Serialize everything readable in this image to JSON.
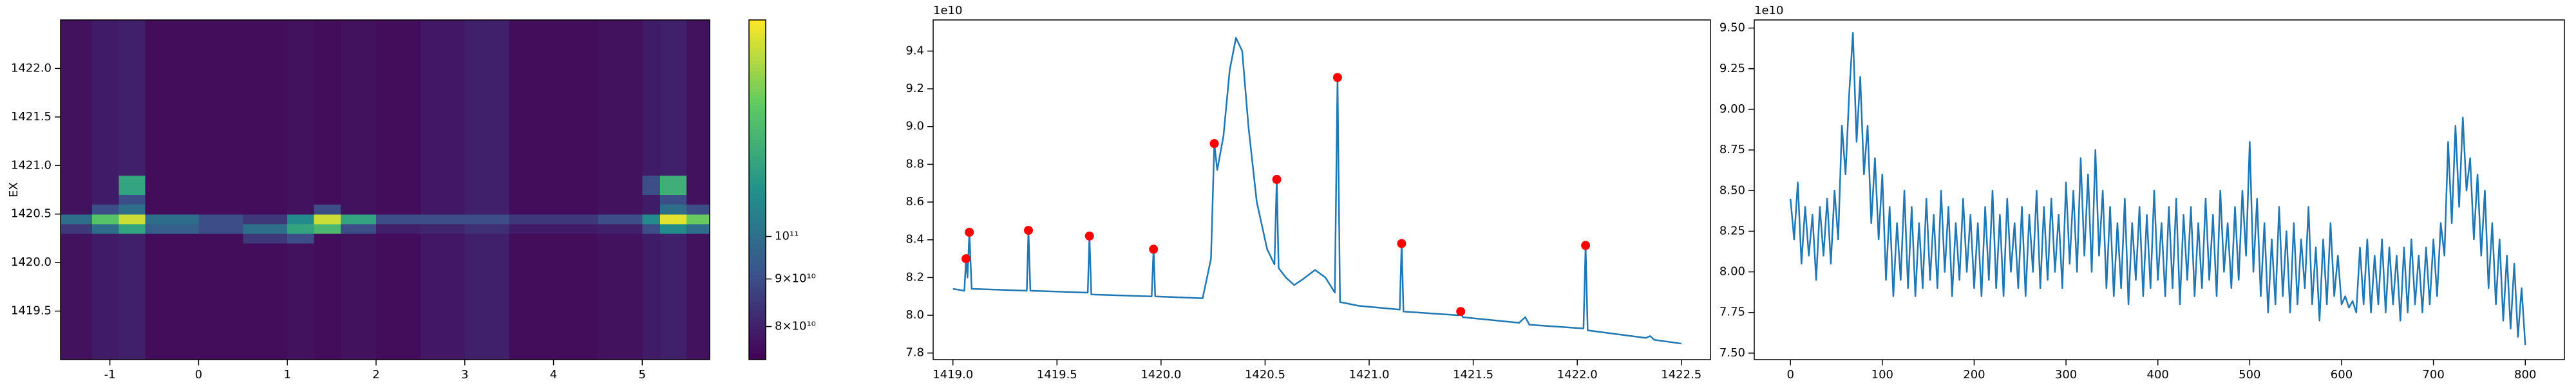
{
  "chart_data": [
    {
      "type": "heatmap",
      "ylabel": "EX",
      "x_edges": [
        -1.556,
        -1.2,
        -0.9,
        -0.6,
        0,
        0.5,
        1.0,
        1.3,
        1.6,
        2.0,
        2.5,
        3.0,
        3.5,
        4.0,
        4.5,
        5.0,
        5.2,
        5.5,
        5.76
      ],
      "y_edges": [
        1419.0,
        1419.5,
        1420.0,
        1420.2,
        1420.3,
        1420.4,
        1420.5,
        1420.6,
        1420.7,
        1420.9,
        1421.0,
        1421.5,
        1422.0,
        1422.5
      ],
      "z": [
        [
          77000000000.0,
          79000000000.0,
          80000000000.0,
          76000000000.0,
          76000000000.0,
          76000000000.0,
          77000000000.0,
          76000000000.0,
          77000000000.0,
          76000000000.0,
          78000000000.0,
          80000000000.0,
          76000000000.0,
          76000000000.0,
          77000000000.0,
          79000000000.0,
          80000000000.0,
          77000000000.0
        ],
        [
          77000000000.0,
          79000000000.0,
          80000000000.0,
          76000000000.0,
          76000000000.0,
          76000000000.0,
          77000000000.0,
          76000000000.0,
          77000000000.0,
          76000000000.0,
          78000000000.0,
          80000000000.0,
          76000000000.0,
          76000000000.0,
          77000000000.0,
          79000000000.0,
          80000000000.0,
          77000000000.0
        ],
        [
          77000000000.0,
          79000000000.0,
          80000000000.0,
          76000000000.0,
          76000000000.0,
          76000000000.0,
          77000000000.0,
          76000000000.0,
          77000000000.0,
          76000000000.0,
          78000000000.0,
          80000000000.0,
          76000000000.0,
          76000000000.0,
          77000000000.0,
          79000000000.0,
          80000000000.0,
          77000000000.0
        ],
        [
          77000000000.0,
          79000000000.0,
          80000000000.0,
          76000000000.0,
          76000000000.0,
          85000000000.0,
          90000000000.0,
          76000000000.0,
          77000000000.0,
          76000000000.0,
          78000000000.0,
          80000000000.0,
          76000000000.0,
          76000000000.0,
          77000000000.0,
          79000000000.0,
          80000000000.0,
          77000000000.0
        ],
        [
          85000000000.0,
          100000000000.0,
          120000000000.0,
          95000000000.0,
          90000000000.0,
          100000000000.0,
          120000000000.0,
          130000000000.0,
          90000000000.0,
          80000000000.0,
          81000000000.0,
          83000000000.0,
          79000000000.0,
          79000000000.0,
          80000000000.0,
          90000000000.0,
          110000000000.0,
          100000000000.0
        ],
        [
          100000000000.0,
          135000000000.0,
          160000000000.0,
          100000000000.0,
          90000000000.0,
          85000000000.0,
          110000000000.0,
          160000000000.0,
          120000000000.0,
          90000000000.0,
          90000000000.0,
          90000000000.0,
          85000000000.0,
          85000000000.0,
          90000000000.0,
          110000000000.0,
          165000000000.0,
          140000000000.0
        ],
        [
          77000000000.0,
          90000000000.0,
          100000000000.0,
          76000000000.0,
          76000000000.0,
          76000000000.0,
          77000000000.0,
          90000000000.0,
          77000000000.0,
          76000000000.0,
          78000000000.0,
          80000000000.0,
          76000000000.0,
          76000000000.0,
          77000000000.0,
          79000000000.0,
          100000000000.0,
          90000000000.0
        ],
        [
          77000000000.0,
          79000000000.0,
          90000000000.0,
          76000000000.0,
          76000000000.0,
          76000000000.0,
          77000000000.0,
          76000000000.0,
          77000000000.0,
          76000000000.0,
          78000000000.0,
          80000000000.0,
          76000000000.0,
          76000000000.0,
          77000000000.0,
          79000000000.0,
          90000000000.0,
          77000000000.0
        ],
        [
          77000000000.0,
          79000000000.0,
          120000000000.0,
          76000000000.0,
          76000000000.0,
          76000000000.0,
          77000000000.0,
          76000000000.0,
          77000000000.0,
          76000000000.0,
          78000000000.0,
          80000000000.0,
          76000000000.0,
          76000000000.0,
          77000000000.0,
          90000000000.0,
          125000000000.0,
          77000000000.0
        ],
        [
          77000000000.0,
          79000000000.0,
          80000000000.0,
          76000000000.0,
          76000000000.0,
          76000000000.0,
          77000000000.0,
          76000000000.0,
          77000000000.0,
          76000000000.0,
          78000000000.0,
          80000000000.0,
          76000000000.0,
          76000000000.0,
          77000000000.0,
          79000000000.0,
          80000000000.0,
          77000000000.0
        ],
        [
          77000000000.0,
          79000000000.0,
          80000000000.0,
          76000000000.0,
          76000000000.0,
          76000000000.0,
          77000000000.0,
          76000000000.0,
          77000000000.0,
          76000000000.0,
          78000000000.0,
          80000000000.0,
          76000000000.0,
          76000000000.0,
          77000000000.0,
          79000000000.0,
          80000000000.0,
          77000000000.0
        ],
        [
          77000000000.0,
          79000000000.0,
          80000000000.0,
          76000000000.0,
          76000000000.0,
          76000000000.0,
          77000000000.0,
          76000000000.0,
          77000000000.0,
          76000000000.0,
          78000000000.0,
          80000000000.0,
          76000000000.0,
          76000000000.0,
          77000000000.0,
          79000000000.0,
          80000000000.0,
          77000000000.0
        ],
        [
          77000000000.0,
          79000000000.0,
          80000000000.0,
          76000000000.0,
          76000000000.0,
          76000000000.0,
          77000000000.0,
          76000000000.0,
          77000000000.0,
          76000000000.0,
          78000000000.0,
          80000000000.0,
          76000000000.0,
          76000000000.0,
          77000000000.0,
          79000000000.0,
          80000000000.0,
          77000000000.0
        ]
      ],
      "xlim": [
        -1.556,
        5.76
      ],
      "ylim": [
        1419.0,
        1422.5
      ],
      "xticks": [
        -1,
        0,
        1,
        2,
        3,
        4,
        5
      ],
      "yticks": [
        1419.5,
        {
          "value": 1420,
          "label": "1420.0"
        },
        1420.5,
        {
          "value": 1421,
          "label": "1421.0"
        },
        1421.5,
        {
          "value": 1422,
          "label": "1422.0"
        }
      ],
      "colorbar": {
        "colormap": "viridis",
        "log": true,
        "lim": [
          73700000000.0,
          171000000000.0
        ],
        "ticks": [
          {
            "value": 80000000000.0,
            "label": "8×10¹⁰"
          },
          {
            "value": 90000000000.0,
            "label": "9×10¹⁰"
          },
          {
            "value": 100000000000.0,
            "label": "10¹¹"
          }
        ]
      }
    },
    {
      "type": "line",
      "offset_label": "1e10",
      "color": "#1f77b4",
      "x": [
        1419.0,
        1419.055,
        1419.063,
        1419.07,
        1419.079,
        1419.09,
        1419.355,
        1419.363,
        1419.372,
        1419.648,
        1419.656,
        1419.665,
        1419.955,
        1419.964,
        1419.972,
        1420.2,
        1420.24,
        1420.256,
        1420.27,
        1420.3,
        1420.33,
        1420.36,
        1420.39,
        1420.42,
        1420.46,
        1420.51,
        1420.545,
        1420.556,
        1420.565,
        1420.6,
        1420.64,
        1420.68,
        1420.74,
        1420.79,
        1420.835,
        1420.848,
        1420.86,
        1420.95,
        1421.147,
        1421.156,
        1421.165,
        1421.43,
        1421.44,
        1421.45,
        1421.72,
        1421.75,
        1421.77,
        1422.03,
        1422.04,
        1422.05,
        1422.33,
        1422.35,
        1422.37,
        1422.5
      ],
      "values": [
        8.14,
        8.13,
        8.3,
        8.2,
        8.44,
        8.14,
        8.13,
        8.45,
        8.13,
        8.12,
        8.42,
        8.11,
        8.1,
        8.35,
        8.1,
        8.09,
        8.3,
        8.91,
        8.77,
        8.95,
        9.3,
        9.47,
        9.4,
        9.0,
        8.6,
        8.35,
        8.27,
        8.72,
        8.25,
        8.2,
        8.16,
        8.19,
        8.24,
        8.2,
        8.12,
        9.26,
        8.07,
        8.05,
        8.03,
        8.38,
        8.02,
        8.0,
        8.02,
        7.99,
        7.96,
        7.99,
        7.95,
        7.93,
        8.37,
        7.92,
        7.88,
        7.89,
        7.87,
        7.85
      ],
      "markers": {
        "color": "#ff0000",
        "x": [
          1419.063,
          1419.079,
          1419.363,
          1419.656,
          1419.964,
          1420.256,
          1420.556,
          1420.848,
          1421.156,
          1421.44,
          1422.04
        ],
        "values": [
          8.3,
          8.44,
          8.45,
          8.42,
          8.35,
          8.91,
          8.72,
          9.26,
          8.38,
          8.02,
          8.37
        ]
      },
      "xlim": [
        1418.905,
        1422.64
      ],
      "ylim": [
        7.765,
        9.565
      ],
      "xticks": [
        {
          "value": 1419,
          "label": "1419.0"
        },
        1419.5,
        {
          "value": 1420,
          "label": "1420.0"
        },
        1420.5,
        {
          "value": 1421,
          "label": "1421.0"
        },
        1421.5,
        {
          "value": 1422,
          "label": "1422.0"
        },
        1422.5
      ],
      "yticks": [
        7.8,
        {
          "value": 8,
          "label": "8.0"
        },
        8.2,
        8.4,
        8.6,
        8.8,
        {
          "value": 9,
          "label": "9.0"
        },
        9.2,
        9.4
      ]
    },
    {
      "type": "line",
      "offset_label": "1e10",
      "color": "#1f77b4",
      "x": [
        0,
        4,
        8,
        12,
        16,
        20,
        24,
        28,
        32,
        36,
        40,
        44,
        48,
        52,
        56,
        60,
        64,
        68,
        72,
        76,
        80,
        84,
        88,
        92,
        96,
        100,
        104,
        108,
        112,
        116,
        120,
        124,
        128,
        132,
        136,
        140,
        144,
        148,
        152,
        156,
        160,
        164,
        168,
        172,
        176,
        180,
        184,
        188,
        192,
        196,
        200,
        204,
        208,
        212,
        216,
        220,
        224,
        228,
        232,
        236,
        240,
        244,
        248,
        252,
        256,
        260,
        264,
        268,
        272,
        276,
        280,
        284,
        288,
        292,
        296,
        300,
        304,
        308,
        312,
        316,
        320,
        324,
        328,
        332,
        336,
        340,
        344,
        348,
        352,
        356,
        360,
        364,
        368,
        372,
        376,
        380,
        384,
        388,
        392,
        396,
        400,
        404,
        408,
        412,
        416,
        420,
        424,
        428,
        432,
        436,
        440,
        444,
        448,
        452,
        456,
        460,
        464,
        468,
        472,
        476,
        480,
        484,
        488,
        492,
        496,
        500,
        504,
        508,
        512,
        516,
        520,
        524,
        528,
        532,
        536,
        540,
        544,
        548,
        552,
        556,
        560,
        564,
        568,
        572,
        576,
        580,
        584,
        588,
        592,
        596,
        600,
        604,
        608,
        612,
        616,
        620,
        624,
        628,
        632,
        636,
        640,
        644,
        648,
        652,
        656,
        660,
        664,
        668,
        672,
        676,
        680,
        684,
        688,
        692,
        696,
        700,
        704,
        708,
        712,
        716,
        720,
        724,
        728,
        732,
        736,
        740,
        744,
        748,
        752,
        756,
        760,
        764,
        768,
        772,
        776,
        780,
        784,
        788,
        792,
        796,
        800
      ],
      "values": [
        8.45,
        8.2,
        8.55,
        8.05,
        8.4,
        8.1,
        8.35,
        7.95,
        8.4,
        8.1,
        8.45,
        8.05,
        8.5,
        8.2,
        8.9,
        8.6,
        9.1,
        9.47,
        8.8,
        9.2,
        8.6,
        8.9,
        8.3,
        8.7,
        8.2,
        8.6,
        7.95,
        8.4,
        7.85,
        8.3,
        7.95,
        8.5,
        7.9,
        8.4,
        7.85,
        8.3,
        7.9,
        8.45,
        7.95,
        8.35,
        7.9,
        8.5,
        8.0,
        8.4,
        7.85,
        8.3,
        7.95,
        8.45,
        8.0,
        8.35,
        7.9,
        8.3,
        7.85,
        8.4,
        7.95,
        8.5,
        7.9,
        8.35,
        7.85,
        8.45,
        8.0,
        8.3,
        7.9,
        8.4,
        7.85,
        8.35,
        8.0,
        8.5,
        7.9,
        8.4,
        7.95,
        8.45,
        8.0,
        8.35,
        7.9,
        8.55,
        8.05,
        8.5,
        8.0,
        8.7,
        8.1,
        8.6,
        8.0,
        8.75,
        8.1,
        8.5,
        7.9,
        8.4,
        7.85,
        8.3,
        7.9,
        8.45,
        7.8,
        8.3,
        7.95,
        8.4,
        7.85,
        8.35,
        7.9,
        8.5,
        7.95,
        8.3,
        7.85,
        8.4,
        7.9,
        8.45,
        7.8,
        8.35,
        7.95,
        8.4,
        7.85,
        8.3,
        7.9,
        8.45,
        7.95,
        8.35,
        7.85,
        8.5,
        8.0,
        8.3,
        7.9,
        8.4,
        7.95,
        8.5,
        8.1,
        8.8,
        8.0,
        8.45,
        7.85,
        8.3,
        7.75,
        8.2,
        7.8,
        8.4,
        7.85,
        8.25,
        7.75,
        8.3,
        7.8,
        8.2,
        7.9,
        8.4,
        7.8,
        8.15,
        7.7,
        8.2,
        7.8,
        8.3,
        7.85,
        8.1,
        7.8,
        7.85,
        7.78,
        7.82,
        7.75,
        8.15,
        7.8,
        8.2,
        7.75,
        8.1,
        7.8,
        8.2,
        7.75,
        8.15,
        7.8,
        8.1,
        7.7,
        8.15,
        7.75,
        8.2,
        7.8,
        8.1,
        7.75,
        8.15,
        7.8,
        8.2,
        7.85,
        8.3,
        8.1,
        8.8,
        8.3,
        8.9,
        8.4,
        8.95,
        8.5,
        8.7,
        8.2,
        8.6,
        8.1,
        8.5,
        7.9,
        8.3,
        7.8,
        8.2,
        7.7,
        8.1,
        7.65,
        8.05,
        7.6,
        7.9,
        7.55
      ],
      "xlim": [
        -39.4,
        842.6
      ],
      "ylim": [
        7.46,
        9.55
      ],
      "xticks": [
        0,
        100,
        200,
        300,
        400,
        500,
        600,
        700,
        800
      ],
      "yticks": [
        {
          "value": 7.5,
          "label": "7.50"
        },
        7.75,
        {
          "value": 8,
          "label": "8.00"
        },
        8.25,
        {
          "value": 8.5,
          "label": "8.50"
        },
        8.75,
        {
          "value": 9,
          "label": "9.00"
        },
        9.25,
        {
          "value": 9.5,
          "label": "9.50"
        }
      ]
    }
  ]
}
